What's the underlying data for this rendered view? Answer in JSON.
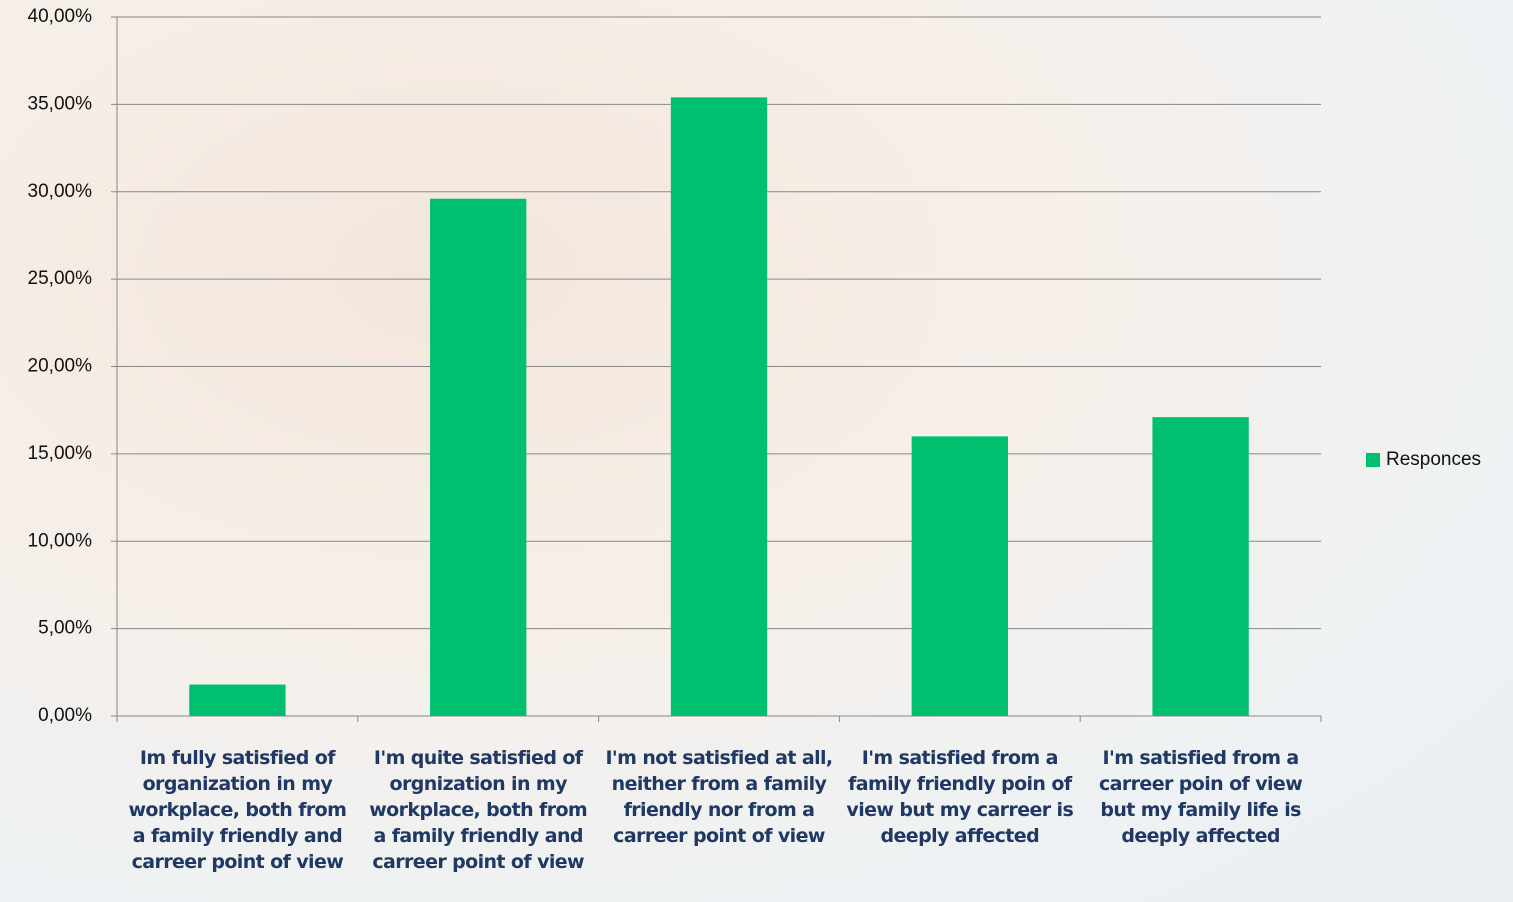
{
  "chart_data": {
    "type": "bar",
    "categories": [
      "Im fully satisfied of organization in my workplace, both from a family friendly and carreer point of view",
      "I'm quite satisfied of orgnization in my workplace, both from a family friendly and carreer point of view",
      "I'm not satisfied at all, neither  from a family friendly nor from a carreer point of view",
      "I'm satisfied  from a family friendly poin of view but my carreer is deeply affected",
      "I'm satisfied  from a carreer poin of view but my family life is deeply affected"
    ],
    "series": [
      {
        "name": "Responces",
        "color": "#00bf6f",
        "values": [
          1.8,
          29.6,
          35.4,
          16,
          17.1
        ]
      }
    ],
    "ylim": [
      0,
      40
    ],
    "yticks": [
      {
        "value": 0,
        "label": "0,00%"
      },
      {
        "value": 5,
        "label": "5,00%"
      },
      {
        "value": 10,
        "label": "10,00%"
      },
      {
        "value": 15,
        "label": "15,00%"
      },
      {
        "value": 20,
        "label": "20,00%"
      },
      {
        "value": 25,
        "label": "25,00%"
      },
      {
        "value": 30,
        "label": "30,00%"
      },
      {
        "value": 35,
        "label": "35,00%"
      },
      {
        "value": 40,
        "label": "40,00%"
      }
    ],
    "grid": true,
    "legend": "right"
  }
}
